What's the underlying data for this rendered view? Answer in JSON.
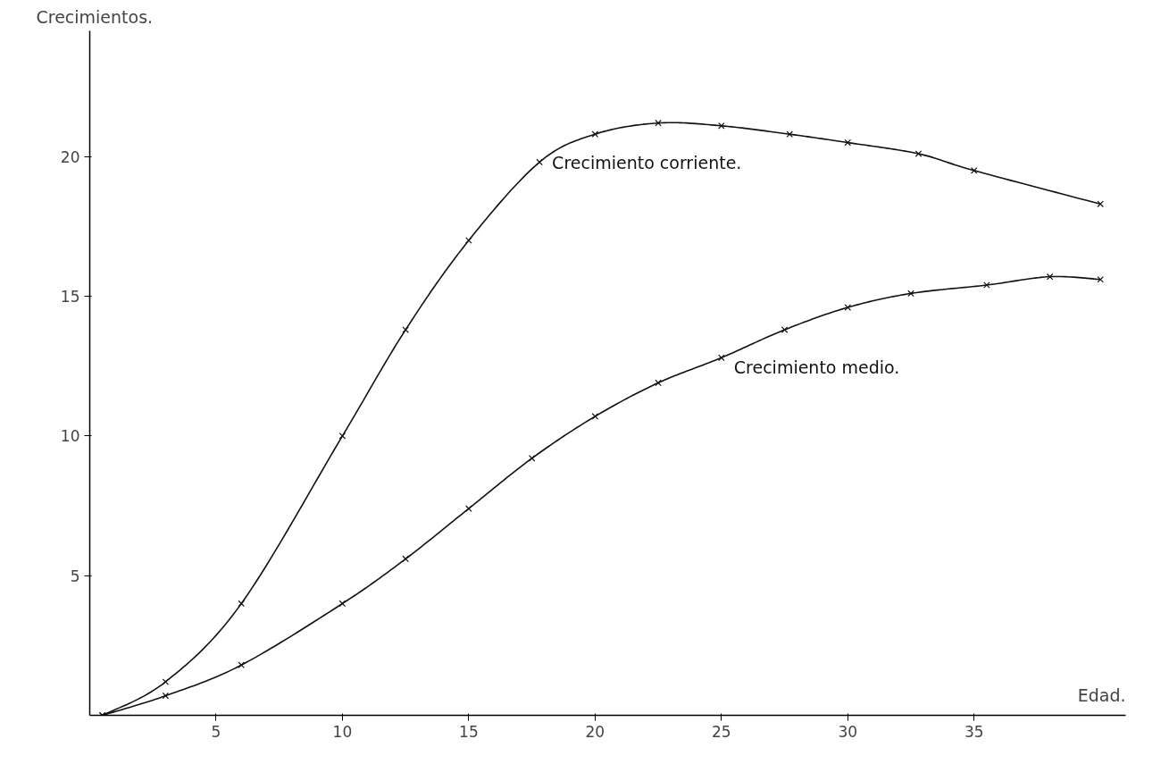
{
  "chart_data": {
    "type": "line",
    "xlabel": "Edad.",
    "ylabel": "Crecimientos.",
    "xlim": [
      0,
      41
    ],
    "ylim": [
      0,
      24.5
    ],
    "xticks": [
      5,
      10,
      15,
      20,
      25,
      30,
      35
    ],
    "yticks": [
      5,
      10,
      15,
      20
    ],
    "grid": false,
    "marker": "cross",
    "line_style": "solid",
    "series": [
      {
        "name": "Crecimiento corriente.",
        "color": "#111111",
        "x": [
          0.5,
          3,
          6,
          10,
          12.5,
          15,
          17.8,
          20,
          22.5,
          25,
          27.7,
          30,
          32.8,
          35,
          40
        ],
        "values": [
          0,
          1.2,
          4,
          10,
          13.8,
          17,
          19.8,
          20.8,
          21.2,
          21.1,
          20.8,
          20.5,
          20.1,
          19.5,
          18.3
        ]
      },
      {
        "name": "Crecimiento medio.",
        "color": "#111111",
        "x": [
          0.5,
          3,
          6,
          10,
          12.5,
          15,
          17.5,
          20,
          22.5,
          25,
          27.5,
          30,
          32.5,
          35.5,
          38,
          40
        ],
        "values": [
          0,
          0.7,
          1.8,
          4,
          5.6,
          7.4,
          9.2,
          10.7,
          11.9,
          12.8,
          13.8,
          14.6,
          15.1,
          15.4,
          15.7,
          15.6
        ]
      }
    ]
  }
}
